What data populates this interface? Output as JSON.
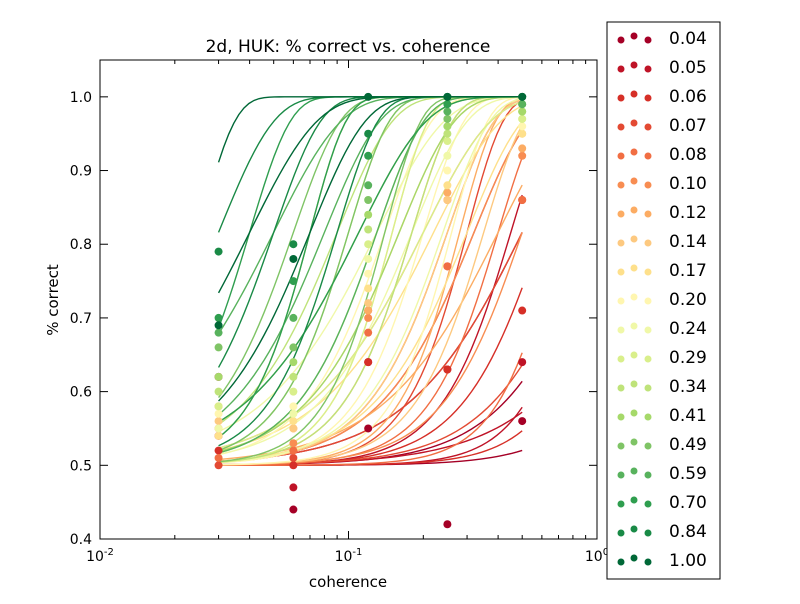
{
  "chart_data": {
    "type": "line",
    "title": "2d, HUK: % correct vs. coherence",
    "xlabel": "coherence",
    "ylabel": "% correct",
    "xscale": "log",
    "xlim": [
      0.01,
      1
    ],
    "ylim": [
      0.4,
      1.05
    ],
    "x_ticks": [
      {
        "value": 0.01,
        "base": "10",
        "exp": "-2"
      },
      {
        "value": 0.1,
        "base": "10",
        "exp": "-1"
      },
      {
        "value": 1,
        "base": "10",
        "exp": "0"
      }
    ],
    "y_ticks": [
      0.4,
      0.5,
      0.6,
      0.7,
      0.8,
      0.9,
      1.0
    ],
    "y_tick_labels": [
      "0.4",
      "0.5",
      "0.6",
      "0.7",
      "0.8",
      "0.9",
      "1.0"
    ],
    "grid": false,
    "legend_position": "outside-right",
    "coherence_levels": [
      0.03,
      0.06,
      0.12,
      0.25,
      0.5
    ],
    "series": [
      {
        "label": "0.04",
        "color": "#a50026",
        "fit_thresholds": [
          0.5,
          1.0,
          2.0
        ],
        "points": [
          0.62,
          0.44,
          0.55,
          0.42,
          0.56
        ]
      },
      {
        "label": "0.05",
        "color": "#bf1327",
        "fit_thresholds": [
          0.45,
          0.9,
          1.6
        ],
        "points": [
          0.54,
          0.47,
          0.64,
          0.63,
          0.64
        ]
      },
      {
        "label": "0.06",
        "color": "#d62f27",
        "fit_thresholds": [
          0.32,
          0.6,
          1.2
        ],
        "points": [
          0.52,
          0.5,
          0.64,
          0.63,
          0.71
        ]
      },
      {
        "label": "0.07",
        "color": "#e34a33",
        "fit_thresholds": [
          0.3,
          0.5,
          0.9
        ],
        "points": [
          0.5,
          0.51,
          0.71,
          0.77,
          0.86
        ]
      },
      {
        "label": "0.08",
        "color": "#f16e43",
        "fit_thresholds": [
          0.25,
          0.4,
          0.7
        ],
        "points": [
          0.51,
          0.52,
          0.68,
          0.77,
          0.86
        ]
      },
      {
        "label": "0.10",
        "color": "#f88d52",
        "fit_thresholds": [
          0.2,
          0.32,
          0.5
        ],
        "points": [
          0.55,
          0.53,
          0.7,
          0.86,
          0.92
        ]
      },
      {
        "label": "0.12",
        "color": "#fcac63",
        "fit_thresholds": [
          0.18,
          0.28,
          0.4
        ],
        "points": [
          0.58,
          0.55,
          0.71,
          0.87,
          0.93
        ]
      },
      {
        "label": "0.14",
        "color": "#fdc980",
        "fit_thresholds": [
          0.16,
          0.25,
          0.35
        ],
        "points": [
          0.56,
          0.55,
          0.72,
          0.86,
          0.95
        ]
      },
      {
        "label": "0.17",
        "color": "#fee08b",
        "fit_thresholds": [
          0.15,
          0.22,
          0.3
        ],
        "points": [
          0.54,
          0.56,
          0.74,
          0.88,
          0.95
        ]
      },
      {
        "label": "0.20",
        "color": "#fff6b0",
        "fit_thresholds": [
          0.14,
          0.2,
          0.26
        ],
        "points": [
          0.57,
          0.58,
          0.76,
          0.9,
          0.96
        ]
      },
      {
        "label": "0.24",
        "color": "#f0f8a8",
        "fit_thresholds": [
          0.13,
          0.18,
          0.24
        ],
        "points": [
          0.55,
          0.57,
          0.78,
          0.92,
          0.97
        ]
      },
      {
        "label": "0.29",
        "color": "#d9ef8b",
        "fit_thresholds": [
          0.1,
          0.15,
          0.2
        ],
        "points": [
          0.58,
          0.6,
          0.8,
          0.94,
          0.97
        ]
      },
      {
        "label": "0.34",
        "color": "#bfe37a",
        "fit_thresholds": [
          0.09,
          0.13,
          0.18
        ],
        "points": [
          0.6,
          0.62,
          0.82,
          0.95,
          0.98
        ]
      },
      {
        "label": "0.41",
        "color": "#a6d96a",
        "fit_thresholds": [
          0.07,
          0.11,
          0.16
        ],
        "points": [
          0.62,
          0.64,
          0.84,
          0.96,
          0.98
        ]
      },
      {
        "label": "0.49",
        "color": "#7fc466",
        "fit_thresholds": [
          0.06,
          0.1,
          0.14
        ],
        "points": [
          0.66,
          0.66,
          0.86,
          0.97,
          0.99
        ]
      },
      {
        "label": "0.59",
        "color": "#58b25d",
        "fit_thresholds": [
          0.05,
          0.08,
          0.13
        ],
        "points": [
          0.68,
          0.7,
          0.88,
          0.98,
          0.99
        ]
      },
      {
        "label": "0.70",
        "color": "#2f9e4f",
        "fit_thresholds": [
          0.04,
          0.07,
          0.11
        ],
        "points": [
          0.7,
          0.75,
          0.92,
          0.99,
          1.0
        ]
      },
      {
        "label": "0.84",
        "color": "#198a46",
        "fit_thresholds": [
          0.03,
          0.05,
          0.09
        ],
        "points": [
          0.79,
          0.8,
          0.95,
          1.0,
          1.0
        ]
      },
      {
        "label": "1.00",
        "color": "#006837",
        "fit_thresholds": [
          0.025,
          0.04,
          0.07
        ],
        "points": [
          0.69,
          0.78,
          1.0,
          1.0,
          1.0
        ]
      }
    ]
  }
}
